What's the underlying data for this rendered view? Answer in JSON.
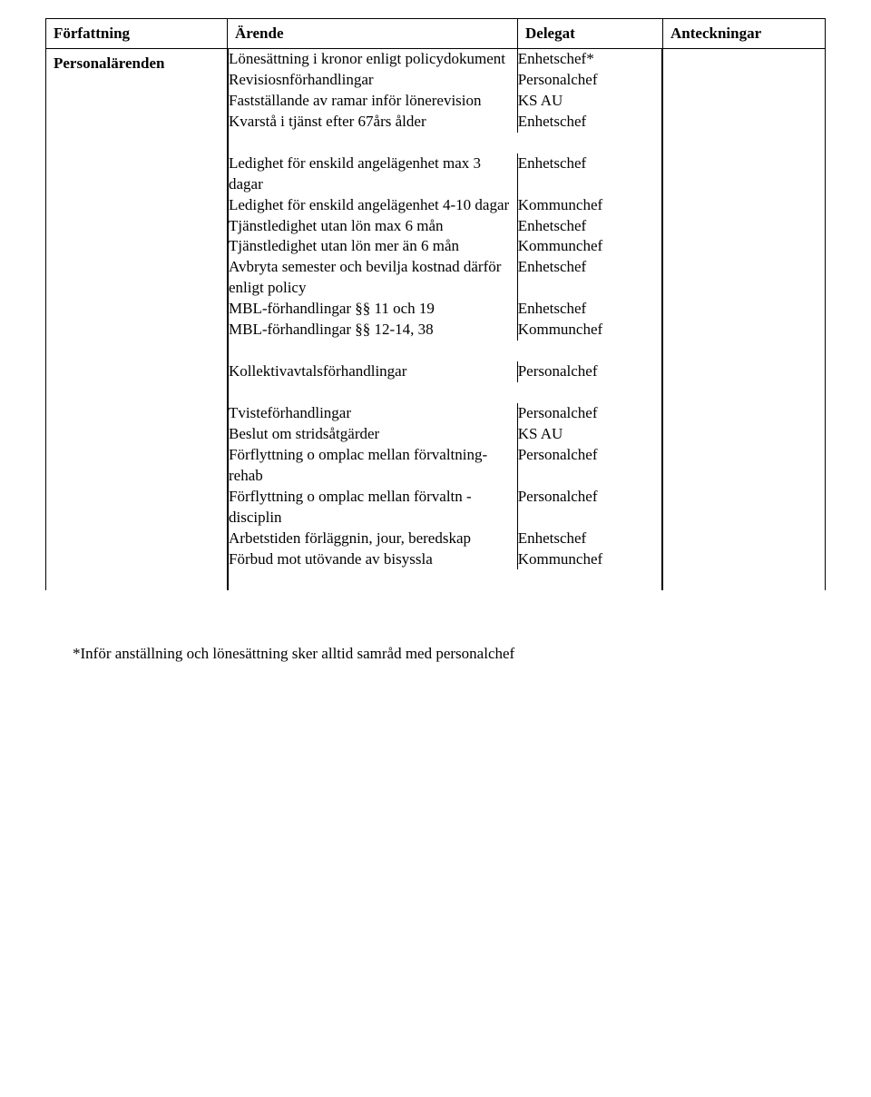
{
  "headers": {
    "col1": "Författning",
    "col2": "Ärende",
    "col3": "Delegat",
    "col4": "Anteckningar"
  },
  "section_title": "Personalärenden",
  "rows": [
    {
      "arende": "Lönesättning i kronor enligt policydokument",
      "delegat": "Enhetschef*",
      "cls": ""
    },
    {
      "arende": "Revisiosnförhandlingar",
      "delegat": "Personalchef",
      "cls": "smaller"
    },
    {
      "arende": "Fastställande av ramar inför lönerevision",
      "delegat": "KS AU",
      "cls": ""
    },
    {
      "arende": "Kvarstå i tjänst efter 67års ålder",
      "delegat": "Enhetschef",
      "cls": ""
    }
  ],
  "group2": [
    {
      "arende": "Ledighet för enskild angelägenhet max 3 dagar",
      "delegat": "Enhetschef",
      "cls": ""
    },
    {
      "arende": "Ledighet för enskild angelägenhet 4-10 dagar",
      "delegat": "Kommunchef",
      "cls": "smaller"
    },
    {
      "arende": "Tjänstledighet utan lön max 6 mån",
      "delegat": "Enhetschef",
      "cls": ""
    },
    {
      "arende": "Tjänstledighet utan lön mer än 6 mån",
      "delegat": "Kommunchef",
      "cls": "smaller"
    },
    {
      "arende": "Avbryta semester och bevilja kostnad därför enligt policy",
      "delegat": "Enhetschef",
      "cls": ""
    },
    {
      "arende": "MBL-förhandlingar §§ 11 och 19",
      "delegat": "Enhetschef",
      "cls": ""
    },
    {
      "arende": "MBL-förhandlingar §§ 12-14, 38",
      "delegat": "Kommunchef",
      "cls": "smaller"
    }
  ],
  "group3": [
    {
      "arende": "Kollektivavtalsförhandlingar",
      "delegat": "Personalchef",
      "cls": "smaller"
    }
  ],
  "group4": [
    {
      "arende": "Tvisteförhandlingar",
      "delegat": "Personalchef",
      "cls": "smaller"
    },
    {
      "arende": "Beslut om stridsåtgärder",
      "delegat": "KS AU",
      "cls": ""
    },
    {
      "arende": "Förflyttning o omplac mellan förvaltning-rehab",
      "delegat": "Personalchef",
      "cls": "smaller"
    },
    {
      "arende": "Förflyttning o omplac mellan förvaltn - disciplin",
      "delegat": "Personalchef",
      "cls": "smaller"
    },
    {
      "arende": "Arbetstiden förläggnin, jour, beredskap",
      "delegat": "Enhetschef",
      "cls": ""
    },
    {
      "arende": "Förbud mot utövande av bisyssla",
      "delegat": "Kommunchef",
      "cls": "smaller"
    }
  ],
  "footnote": "*Inför anställning och lönesättning sker alltid samråd med personalchef"
}
